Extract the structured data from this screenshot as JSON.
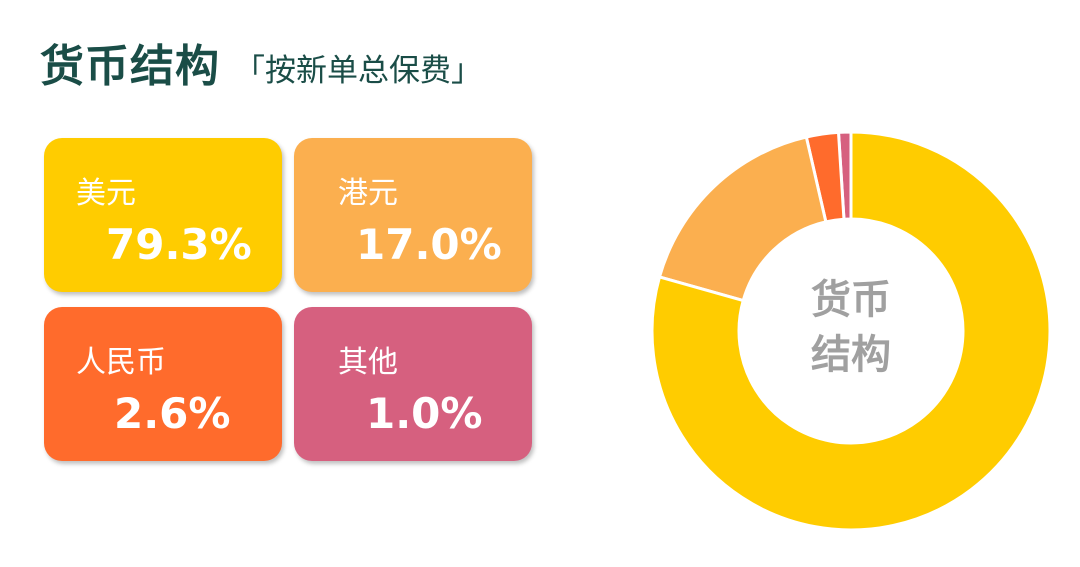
{
  "header": {
    "title": "货币结构",
    "subtitle": "「按新单总保费」"
  },
  "chart_data": {
    "type": "pie",
    "donut": true,
    "center_label": [
      "货币",
      "结构"
    ],
    "categories": [
      "美元",
      "港元",
      "人民币",
      "其他"
    ],
    "values": [
      79.3,
      17.0,
      2.6,
      1.0
    ],
    "value_labels": [
      "79.3%",
      "17.0%",
      "2.6%",
      "1.0%"
    ],
    "colors": [
      "#FFCC00",
      "#FBAF4F",
      "#FF6B2C",
      "#D6607F"
    ],
    "unit": "%"
  }
}
